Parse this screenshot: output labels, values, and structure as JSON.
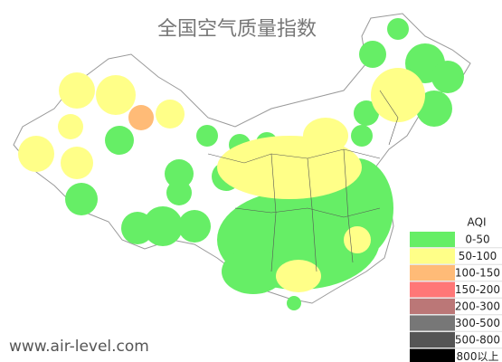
{
  "header": {
    "title": "全国空气质量指数"
  },
  "legend": {
    "title": "AQI",
    "items": [
      {
        "label": "0-50",
        "color": "#66ee66"
      },
      {
        "label": "50-100",
        "color": "#ffff88"
      },
      {
        "label": "100-150",
        "color": "#ffbb77"
      },
      {
        "label": "150-200",
        "color": "#ff7777"
      },
      {
        "label": "200-300",
        "color": "#bb7777"
      },
      {
        "label": "300-500",
        "color": "#777777"
      },
      {
        "label": "500-800",
        "color": "#555555"
      },
      {
        "label": "800以上",
        "color": "#000000"
      }
    ]
  },
  "footer": {
    "watermark": "www.air-level.com"
  }
}
